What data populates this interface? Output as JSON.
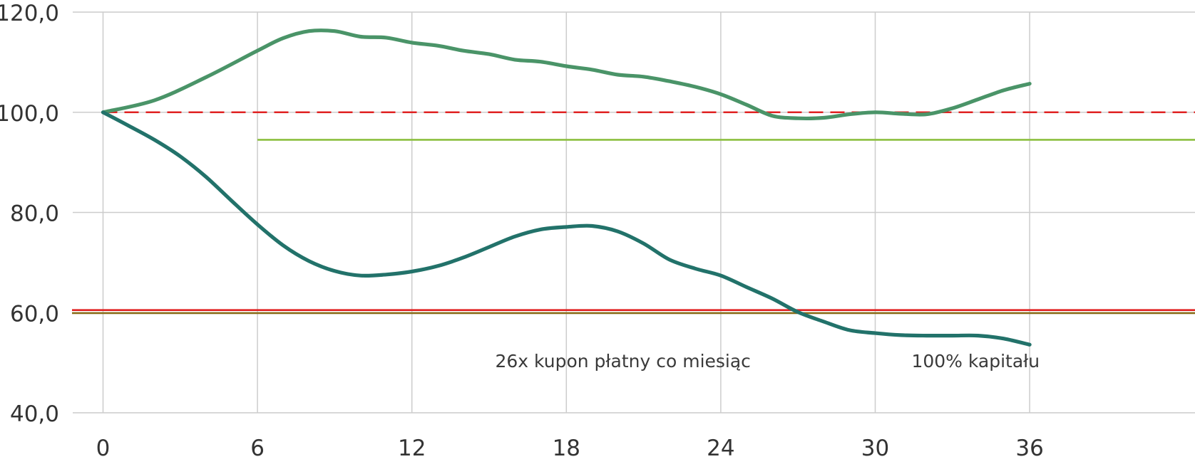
{
  "chart_data": {
    "type": "line",
    "title": "",
    "xlabel": "",
    "ylabel": "",
    "x_ticks": [
      "0",
      "6",
      "12",
      "18",
      "24",
      "30",
      "36"
    ],
    "y_ticks": [
      "40,0",
      "60,0",
      "80,0",
      "100,0",
      "120,0"
    ],
    "xlim": [
      0,
      42.5
    ],
    "ylim": [
      40,
      120
    ],
    "grid": "on",
    "legend": "none",
    "series": [
      {
        "color": "#4a9468",
        "x": [
          0,
          2,
          4,
          6,
          7,
          8,
          9,
          10,
          11,
          12,
          13,
          14,
          15,
          16,
          17,
          18,
          19,
          20,
          21,
          22,
          23,
          24,
          25,
          26,
          27,
          28,
          29,
          30,
          31,
          32,
          33,
          34,
          35,
          36
        ],
        "y": [
          100,
          102.4,
          107,
          112.3,
          114.8,
          116.2,
          116.2,
          115.1,
          114.9,
          113.9,
          113.3,
          112.3,
          111.6,
          110.5,
          110.1,
          109.2,
          108.5,
          107.5,
          107.1,
          106.2,
          105.1,
          103.6,
          101.5,
          99.3,
          98.8,
          98.9,
          99.6,
          100,
          99.7,
          99.6,
          100.8,
          102.6,
          104.4,
          105.7
        ]
      },
      {
        "color": "#22726a",
        "x": [
          0,
          1,
          2,
          3,
          4,
          5,
          6,
          7,
          8,
          9,
          10,
          11,
          12,
          13,
          14,
          15,
          16,
          17,
          18,
          19,
          20,
          21,
          22,
          23,
          24,
          25,
          26,
          27,
          28,
          29,
          30,
          31,
          32,
          33,
          34,
          35,
          36
        ],
        "y": [
          100,
          97.3,
          94.5,
          91.2,
          87.1,
          82.3,
          77.6,
          73.4,
          70.3,
          68.3,
          67.4,
          67.6,
          68.2,
          69.3,
          71,
          73.1,
          75.2,
          76.6,
          77.1,
          77.3,
          76.2,
          73.8,
          70.6,
          68.8,
          67.4,
          65.1,
          62.8,
          60.1,
          58.2,
          56.5,
          55.9,
          55.5,
          55.4,
          55.4,
          55.4,
          54.8,
          53.6
        ]
      }
    ],
    "reference_lines": [
      {
        "y": 100,
        "x_from": 0,
        "x_to": 42.5,
        "color": "#e02222",
        "style": "dashed"
      },
      {
        "y": 94.5,
        "x_from": 6,
        "x_to": 42.5,
        "color": "#8cbf3f",
        "style": "solid"
      },
      {
        "y": 60.5,
        "x_from": -1.2,
        "x_to": 42.5,
        "color": "#e02222",
        "style": "solid"
      },
      {
        "y": 59.9,
        "x_from": -1.2,
        "x_to": 42.5,
        "color": "#8a6d1a",
        "style": "solid"
      }
    ],
    "annotations": [
      {
        "text": "26x kupon płatny co miesiąc",
        "x": 20.2,
        "y": 50.5
      },
      {
        "text": "100% kapitału",
        "x": 33.9,
        "y": 50.5
      }
    ]
  }
}
